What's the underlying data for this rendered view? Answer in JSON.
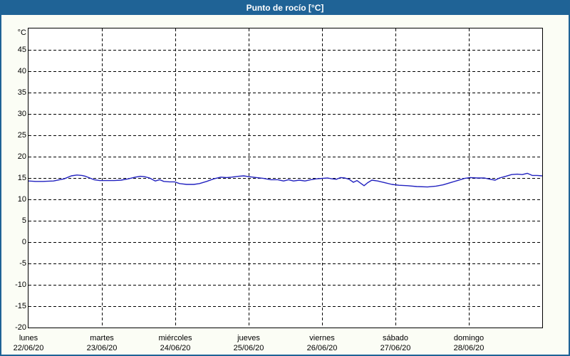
{
  "window": {
    "title": "Punto de rocío [°C]"
  },
  "colors": {
    "titlebar_bg": "#1f6396",
    "titlebar_text": "#ffffff",
    "window_border": "#1f6396",
    "window_bg": "#fbfdf5",
    "plot_bg": "#ffffff",
    "grid": "#000000",
    "axis": "#000000",
    "line": "#2222c0"
  },
  "chart_data": {
    "type": "line",
    "title": "Punto de rocío [°C]",
    "ylabel": "°C",
    "xlabel": "",
    "ylim": [
      -20,
      50
    ],
    "y_ticks": [
      45,
      40,
      35,
      30,
      25,
      20,
      15,
      10,
      5,
      0,
      -5,
      -10,
      -15,
      -20
    ],
    "grid_style": "dashed",
    "legend": "none",
    "days": [
      {
        "name": "lunes",
        "date": "22/06/20"
      },
      {
        "name": "martes",
        "date": "23/06/20"
      },
      {
        "name": "miércoles",
        "date": "24/06/20"
      },
      {
        "name": "jueves",
        "date": "25/06/20"
      },
      {
        "name": "viernes",
        "date": "26/06/20"
      },
      {
        "name": "sábado",
        "date": "27/06/20"
      },
      {
        "name": "domingo",
        "date": "28/06/20"
      }
    ],
    "series": [
      {
        "name": "Punto de rocío",
        "unit": "°C",
        "color": "#2222c0",
        "x_unit": "days from 22/06/20 00:00",
        "points": [
          [
            0.0,
            14.3
          ],
          [
            0.097,
            14.2
          ],
          [
            0.194,
            14.2
          ],
          [
            0.34,
            14.3
          ],
          [
            0.485,
            14.8
          ],
          [
            0.583,
            15.5
          ],
          [
            0.66,
            15.7
          ],
          [
            0.728,
            15.6
          ],
          [
            0.777,
            15.4
          ],
          [
            0.835,
            15.0
          ],
          [
            0.893,
            14.6
          ],
          [
            0.971,
            14.4
          ],
          [
            1.068,
            14.4
          ],
          [
            1.165,
            14.4
          ],
          [
            1.262,
            14.5
          ],
          [
            1.359,
            14.8
          ],
          [
            1.456,
            15.2
          ],
          [
            1.524,
            15.4
          ],
          [
            1.583,
            15.3
          ],
          [
            1.65,
            15.0
          ],
          [
            1.728,
            14.3
          ],
          [
            1.786,
            14.6
          ],
          [
            1.845,
            14.2
          ],
          [
            1.922,
            14.1
          ],
          [
            1.99,
            14.1
          ],
          [
            2.058,
            13.7
          ],
          [
            2.155,
            13.5
          ],
          [
            2.252,
            13.5
          ],
          [
            2.33,
            13.7
          ],
          [
            2.427,
            14.2
          ],
          [
            2.524,
            14.8
          ],
          [
            2.621,
            15.2
          ],
          [
            2.699,
            15.1
          ],
          [
            2.767,
            15.2
          ],
          [
            2.864,
            15.4
          ],
          [
            2.932,
            15.5
          ],
          [
            3.01,
            15.3
          ],
          [
            3.107,
            15.1
          ],
          [
            3.204,
            14.9
          ],
          [
            3.301,
            14.6
          ],
          [
            3.398,
            14.6
          ],
          [
            3.476,
            14.3
          ],
          [
            3.544,
            14.6
          ],
          [
            3.612,
            14.3
          ],
          [
            3.689,
            14.5
          ],
          [
            3.767,
            14.3
          ],
          [
            3.845,
            14.6
          ],
          [
            3.922,
            14.8
          ],
          [
            4.0,
            14.9
          ],
          [
            4.078,
            15.0
          ],
          [
            4.136,
            14.8
          ],
          [
            4.194,
            14.7
          ],
          [
            4.252,
            15.1
          ],
          [
            4.311,
            15.0
          ],
          [
            4.369,
            14.7
          ],
          [
            4.427,
            14.0
          ],
          [
            4.476,
            14.4
          ],
          [
            4.524,
            13.8
          ],
          [
            4.573,
            13.2
          ],
          [
            4.621,
            13.9
          ],
          [
            4.68,
            14.5
          ],
          [
            4.757,
            14.3
          ],
          [
            4.854,
            13.9
          ],
          [
            4.951,
            13.5
          ],
          [
            5.049,
            13.3
          ],
          [
            5.165,
            13.2
          ],
          [
            5.291,
            13.0
          ],
          [
            5.437,
            12.9
          ],
          [
            5.553,
            13.1
          ],
          [
            5.65,
            13.4
          ],
          [
            5.748,
            13.9
          ],
          [
            5.845,
            14.4
          ],
          [
            5.942,
            14.9
          ],
          [
            6.019,
            15.1
          ],
          [
            6.117,
            15.0
          ],
          [
            6.214,
            15.0
          ],
          [
            6.291,
            14.7
          ],
          [
            6.359,
            14.5
          ],
          [
            6.417,
            15.0
          ],
          [
            6.505,
            15.4
          ],
          [
            6.583,
            15.8
          ],
          [
            6.66,
            15.9
          ],
          [
            6.728,
            15.8
          ],
          [
            6.796,
            16.1
          ],
          [
            6.864,
            15.6
          ],
          [
            6.932,
            15.6
          ],
          [
            7.0,
            15.5
          ]
        ]
      }
    ]
  }
}
